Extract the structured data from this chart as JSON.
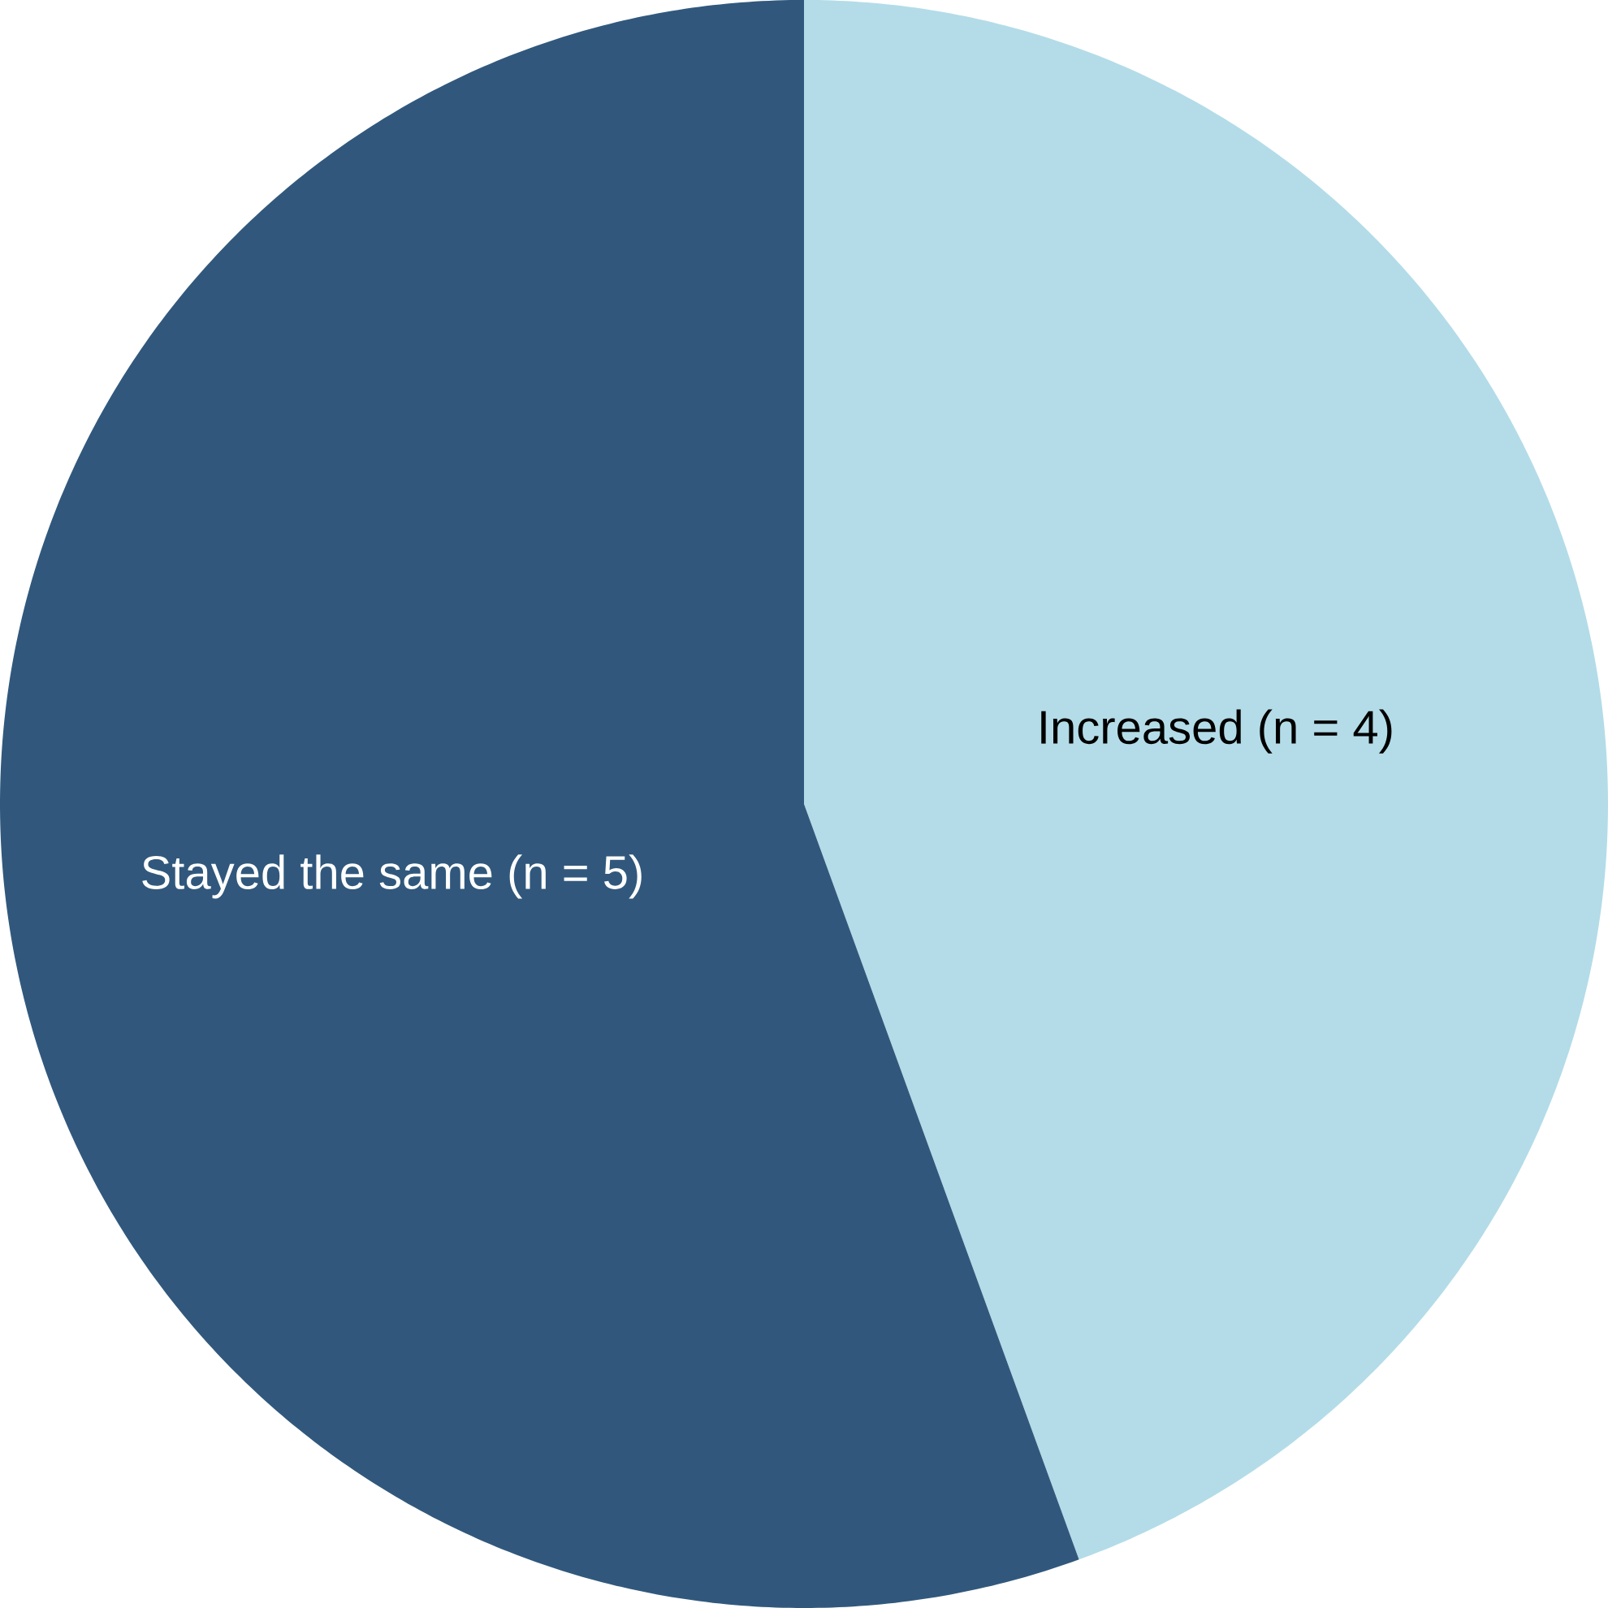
{
  "chart_data": {
    "type": "pie",
    "categories": [
      "Increased (n = 4)",
      "Stayed the same (n = 5)"
    ],
    "values": [
      4,
      5
    ],
    "colors": [
      "#b3dce8",
      "#31587c"
    ]
  }
}
